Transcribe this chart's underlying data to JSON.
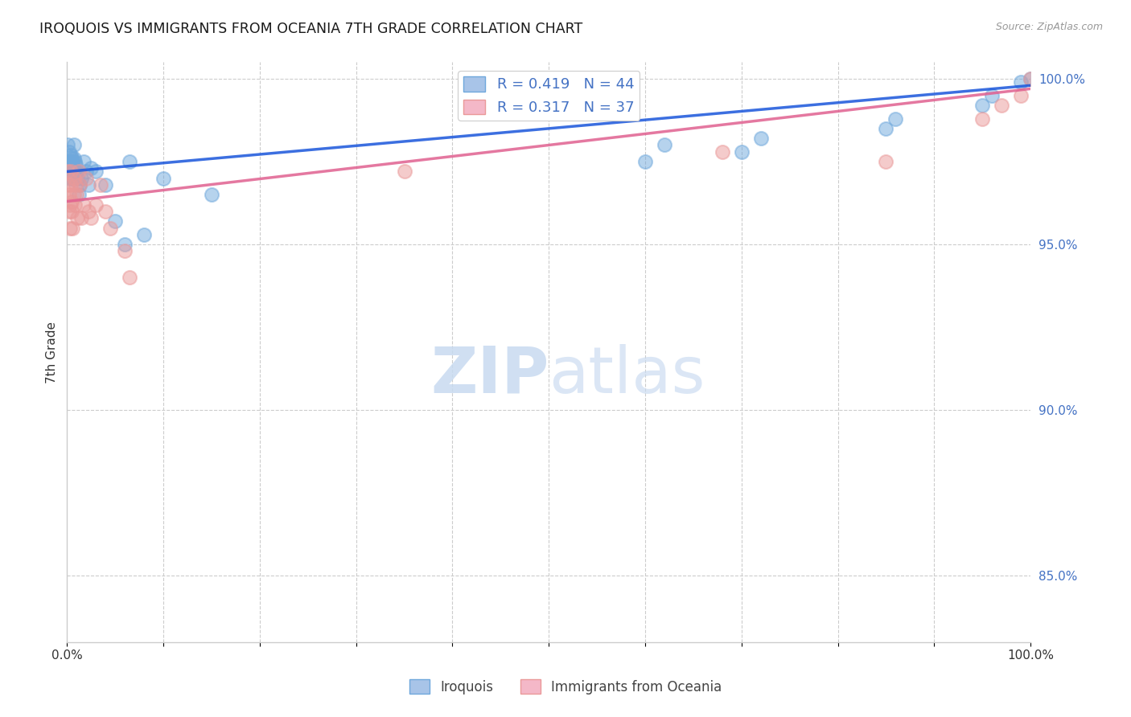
{
  "title": "IROQUOIS VS IMMIGRANTS FROM OCEANIA 7TH GRADE CORRELATION CHART",
  "source": "Source: ZipAtlas.com",
  "ylabel": "7th Grade",
  "iroquois_color": "#6fa8dc",
  "immigrants_color": "#ea9999",
  "trendline_blue": "#1a56db",
  "trendline_pink": "#e06090",
  "watermark_color": "#ddeeff",
  "ylim_min": 0.83,
  "ylim_max": 1.005,
  "xlim_min": 0.0,
  "xlim_max": 1.0,
  "right_yticks": [
    0.85,
    0.9,
    0.95,
    1.0
  ],
  "right_yticklabels": [
    "85.0%",
    "90.0%",
    "95.0%",
    "100.0%"
  ],
  "legend_R_blue": "0.419",
  "legend_N_blue": "44",
  "legend_R_pink": "0.317",
  "legend_N_pink": "37",
  "iroquois_x": [
    0.001,
    0.002,
    0.002,
    0.003,
    0.003,
    0.003,
    0.004,
    0.004,
    0.005,
    0.005,
    0.006,
    0.006,
    0.007,
    0.007,
    0.008,
    0.008,
    0.009,
    0.01,
    0.011,
    0.012,
    0.013,
    0.015,
    0.017,
    0.02,
    0.022,
    0.025,
    0.03,
    0.04,
    0.05,
    0.06,
    0.065,
    0.08,
    0.1,
    0.15,
    0.6,
    0.62,
    0.7,
    0.72,
    0.85,
    0.86,
    0.95,
    0.96,
    0.99,
    1.0
  ],
  "iroquois_y": [
    0.98,
    0.975,
    0.978,
    0.972,
    0.975,
    0.97,
    0.974,
    0.977,
    0.973,
    0.976,
    0.97,
    0.975,
    0.98,
    0.976,
    0.975,
    0.972,
    0.974,
    0.972,
    0.97,
    0.965,
    0.968,
    0.97,
    0.975,
    0.972,
    0.968,
    0.973,
    0.972,
    0.968,
    0.957,
    0.95,
    0.975,
    0.953,
    0.97,
    0.965,
    0.975,
    0.98,
    0.978,
    0.982,
    0.985,
    0.988,
    0.992,
    0.995,
    0.999,
    1.0
  ],
  "immigrants_x": [
    0.001,
    0.001,
    0.002,
    0.002,
    0.003,
    0.003,
    0.004,
    0.004,
    0.005,
    0.005,
    0.006,
    0.007,
    0.007,
    0.008,
    0.009,
    0.01,
    0.011,
    0.012,
    0.013,
    0.015,
    0.017,
    0.02,
    0.022,
    0.025,
    0.03,
    0.035,
    0.04,
    0.045,
    0.06,
    0.065,
    0.35,
    0.68,
    0.85,
    0.95,
    0.97,
    0.99,
    1.0
  ],
  "immigrants_y": [
    0.968,
    0.972,
    0.96,
    0.965,
    0.955,
    0.962,
    0.968,
    0.972,
    0.96,
    0.963,
    0.955,
    0.965,
    0.97,
    0.962,
    0.968,
    0.965,
    0.958,
    0.972,
    0.968,
    0.958,
    0.962,
    0.97,
    0.96,
    0.958,
    0.962,
    0.968,
    0.96,
    0.955,
    0.948,
    0.94,
    0.972,
    0.978,
    0.975,
    0.988,
    0.992,
    0.995,
    1.0
  ]
}
